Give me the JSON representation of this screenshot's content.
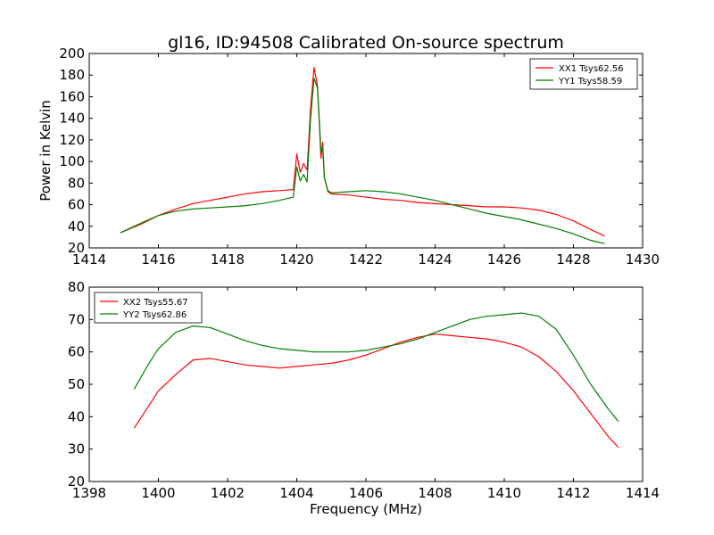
{
  "figure": {
    "title": "gl16, ID:94508 Calibrated On-source spectrum",
    "ylabel": "Power in Kelvin",
    "xlabel": "Frequency (MHz)",
    "colors": {
      "red": "#ff0000",
      "green": "#008000"
    }
  },
  "chart_data": [
    {
      "type": "line",
      "xlim": [
        1414,
        1430
      ],
      "ylim": [
        20,
        200
      ],
      "xticks": [
        1414,
        1416,
        1418,
        1420,
        1422,
        1424,
        1426,
        1428,
        1430
      ],
      "yticks": [
        20,
        40,
        60,
        80,
        100,
        120,
        140,
        160,
        180,
        200
      ],
      "grid": false,
      "legend_position": "top-right",
      "series": [
        {
          "name": "XX1 Tsys62.56",
          "color": "#ff0000",
          "x": [
            1414.9,
            1415.5,
            1416,
            1416.5,
            1417,
            1417.5,
            1418,
            1418.5,
            1419,
            1419.5,
            1419.9,
            1420.0,
            1420.1,
            1420.2,
            1420.3,
            1420.4,
            1420.5,
            1420.6,
            1420.7,
            1420.75,
            1420.8,
            1420.9,
            1421.0,
            1421.5,
            1422,
            1422.5,
            1423,
            1423.5,
            1424,
            1424.5,
            1425,
            1425.5,
            1426,
            1426.5,
            1427,
            1427.5,
            1428,
            1428.5,
            1428.9
          ],
          "y": [
            34,
            42,
            50,
            56,
            61,
            64,
            67,
            70,
            72,
            73,
            74,
            107,
            90,
            98,
            92,
            150,
            187,
            170,
            103,
            118,
            85,
            72,
            70,
            69,
            67,
            65,
            64,
            62,
            61,
            60,
            59,
            58,
            58,
            57,
            55,
            51,
            45,
            37,
            31
          ]
        },
        {
          "name": "YY1 Tsys58.59",
          "color": "#008000",
          "x": [
            1414.9,
            1415.5,
            1416,
            1416.5,
            1417,
            1417.5,
            1418,
            1418.5,
            1419,
            1419.5,
            1419.9,
            1420.0,
            1420.1,
            1420.2,
            1420.3,
            1420.4,
            1420.5,
            1420.6,
            1420.7,
            1420.75,
            1420.8,
            1420.9,
            1421.0,
            1421.5,
            1422,
            1422.5,
            1423,
            1423.5,
            1424,
            1424.5,
            1425,
            1425.5,
            1426,
            1426.5,
            1427,
            1427.5,
            1428,
            1428.5,
            1428.9
          ],
          "y": [
            34,
            43,
            50,
            54,
            56,
            57,
            58,
            59,
            61,
            64,
            67,
            95,
            82,
            88,
            81,
            140,
            177,
            168,
            110,
            113,
            85,
            73,
            71,
            72,
            73,
            72,
            70,
            67,
            64,
            60,
            56,
            52,
            49,
            46,
            42,
            38,
            33,
            27,
            24
          ]
        }
      ]
    },
    {
      "type": "line",
      "xlim": [
        1398,
        1414
      ],
      "ylim": [
        20,
        80
      ],
      "xticks": [
        1398,
        1400,
        1402,
        1404,
        1406,
        1408,
        1410,
        1412,
        1414
      ],
      "yticks": [
        20,
        30,
        40,
        50,
        60,
        70,
        80
      ],
      "grid": false,
      "legend_position": "top-left",
      "series": [
        {
          "name": "XX2 Tsys55.67",
          "color": "#ff0000",
          "x": [
            1399.3,
            1399.7,
            1400,
            1400.5,
            1401,
            1401.5,
            1402,
            1402.5,
            1403,
            1403.5,
            1404,
            1404.5,
            1405,
            1405.5,
            1406,
            1406.5,
            1407,
            1407.5,
            1408,
            1408.5,
            1409,
            1409.5,
            1410,
            1410.5,
            1411,
            1411.5,
            1412,
            1412.5,
            1413,
            1413.3
          ],
          "y": [
            36.5,
            43,
            48,
            53,
            57.5,
            58,
            57,
            56,
            55.5,
            55,
            55.5,
            56,
            56.5,
            57.5,
            59,
            61,
            63,
            64.5,
            65.5,
            65,
            64.5,
            64,
            63,
            61.5,
            58.5,
            54,
            48,
            41,
            34,
            30.5
          ]
        },
        {
          "name": "YY2 Tsys62.86",
          "color": "#008000",
          "x": [
            1399.3,
            1399.7,
            1400,
            1400.5,
            1401,
            1401.5,
            1402,
            1402.5,
            1403,
            1403.5,
            1404,
            1404.5,
            1405,
            1405.5,
            1406,
            1406.5,
            1407,
            1407.5,
            1408,
            1408.5,
            1409,
            1409.5,
            1410,
            1410.5,
            1411,
            1411.5,
            1412,
            1412.5,
            1413,
            1413.3
          ],
          "y": [
            48.5,
            56,
            61,
            66,
            68,
            67.5,
            65.5,
            63.5,
            62,
            61,
            60.5,
            60,
            60,
            60,
            60.5,
            61.5,
            62.5,
            64,
            66,
            68,
            70,
            71,
            71.5,
            72,
            71,
            67,
            59,
            50,
            42.5,
            38.5
          ]
        }
      ]
    }
  ]
}
